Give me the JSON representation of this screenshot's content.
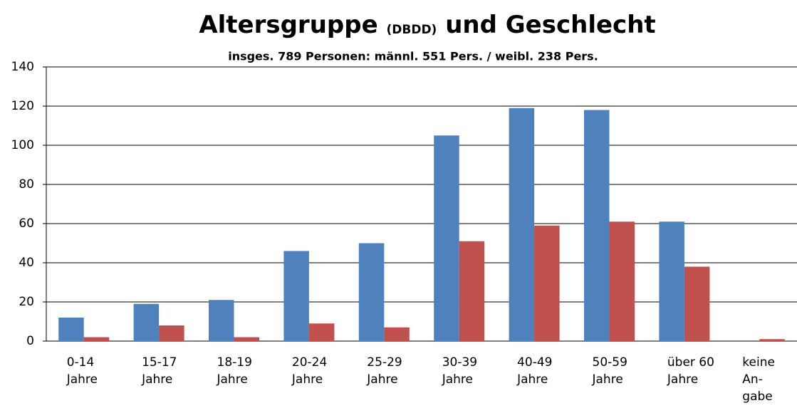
{
  "chart_data": {
    "type": "bar",
    "title": [
      "Altersgruppe",
      "(DBDD)",
      "und Geschlecht"
    ],
    "subtitle": "insges. 789 Personen:  männl. 551 Pers. / weibl. 238 Pers.",
    "categories": [
      [
        "0-14",
        "Jahre"
      ],
      [
        "15-17",
        "Jahre"
      ],
      [
        "18-19",
        "Jahre"
      ],
      [
        "20-24",
        "Jahre"
      ],
      [
        "25-29",
        "Jahre"
      ],
      [
        "30-39",
        "Jahre"
      ],
      [
        "40-49",
        "Jahre"
      ],
      [
        "50-59",
        "Jahre"
      ],
      [
        "über 60",
        "Jahre"
      ],
      [
        "keine",
        "An-",
        "gabe"
      ]
    ],
    "series": [
      {
        "color": "#4f81bd",
        "values": [
          12,
          19,
          21,
          46,
          50,
          105,
          119,
          118,
          61,
          0
        ]
      },
      {
        "color": "#c0504d",
        "values": [
          2,
          8,
          2,
          9,
          7,
          51,
          59,
          61,
          38,
          1
        ]
      }
    ],
    "ylim": [
      0,
      140
    ],
    "yticks": [
      0,
      20,
      40,
      60,
      80,
      100,
      120,
      140
    ],
    "grid": true
  }
}
